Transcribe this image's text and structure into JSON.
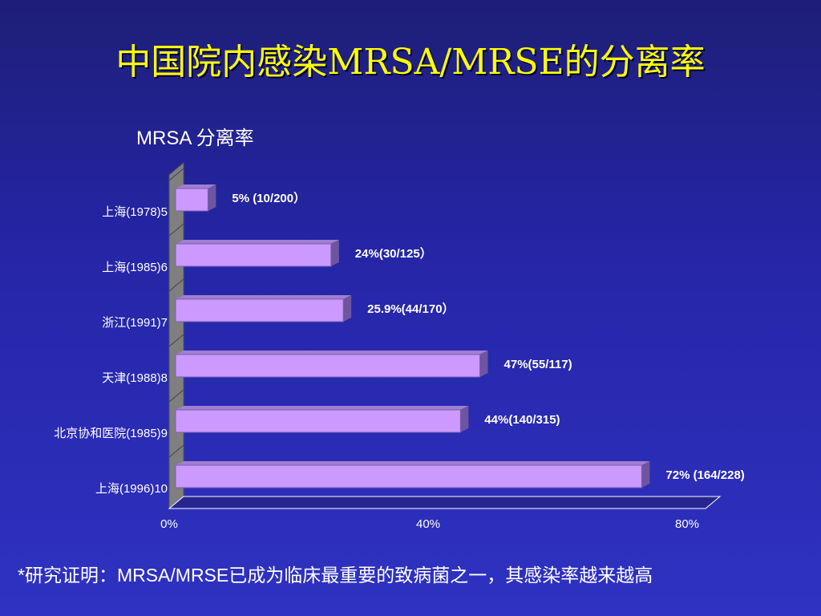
{
  "title": "中国院内感染MRSA/MRSE的分离率",
  "footnote": "*研究证明：MRSA/MRSE已成为临床最重要的致病菌之一，其感染率越来越高",
  "colors": {
    "background": "#2525a6",
    "title": "#ffff00",
    "bar_front": "#cc99ff",
    "bar_top": "#9f7fd0",
    "bar_side": "#6d55a0",
    "wall": "#7f7f7f",
    "floor": "#26268f",
    "text": "#ffffff"
  },
  "chart_data": {
    "type": "bar",
    "orientation": "horizontal",
    "title": "MRSA 分离率",
    "categories": [
      "上海(1978)5",
      "上海(1985)6",
      "浙江(1991)7",
      "天津(1988)8",
      "北京协和医院(1985)9",
      "上海(1996)10"
    ],
    "values": [
      5,
      24,
      25.9,
      47,
      44,
      72
    ],
    "data_labels": [
      "5% (10/200）",
      "24%(30/125）",
      "25.9%(44/170）",
      "47%(55/117)",
      "44%(140/315)",
      "72% (164/228)"
    ],
    "x_ticks": [
      0,
      40,
      80
    ],
    "x_tick_labels": [
      "0%",
      "40%",
      "80%"
    ],
    "xlim": [
      0,
      80
    ],
    "grid": false,
    "legend": "none",
    "style": "3d"
  }
}
